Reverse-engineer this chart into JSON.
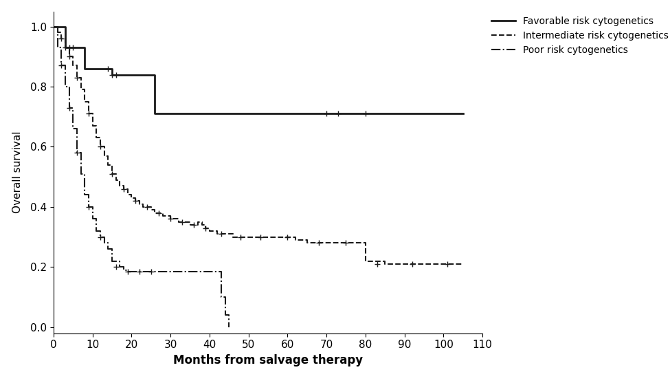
{
  "title": "",
  "xlabel": "Months from salvage therapy",
  "ylabel": "Overall survival",
  "xlim": [
    0,
    110
  ],
  "ylim": [
    -0.02,
    1.05
  ],
  "xticks": [
    0,
    10,
    20,
    30,
    40,
    50,
    60,
    70,
    80,
    90,
    100,
    110
  ],
  "yticks": [
    0.0,
    0.2,
    0.4,
    0.6,
    0.8,
    1.0
  ],
  "favorable": {
    "times": [
      0,
      2,
      3,
      5,
      8,
      14,
      15,
      26,
      35,
      105
    ],
    "surv": [
      1.0,
      1.0,
      0.93,
      0.93,
      0.86,
      0.86,
      0.84,
      0.71,
      0.71,
      0.71
    ],
    "censors_t": [
      3,
      4,
      5,
      14,
      15,
      16,
      70,
      73,
      80
    ],
    "censors_s": [
      0.93,
      0.93,
      0.93,
      0.86,
      0.84,
      0.84,
      0.71,
      0.71,
      0.71
    ],
    "linestyle": "solid",
    "color": "#1a1a1a",
    "linewidth": 2.0
  },
  "intermediate": {
    "times": [
      0,
      1,
      2,
      3,
      4,
      5,
      6,
      7,
      8,
      9,
      10,
      11,
      12,
      13,
      14,
      15,
      16,
      17,
      18,
      19,
      20,
      21,
      22,
      23,
      24,
      25,
      26,
      27,
      28,
      30,
      32,
      33,
      35,
      36,
      37,
      38,
      39,
      40,
      41,
      42,
      44,
      46,
      48,
      50,
      52,
      55,
      58,
      60,
      62,
      65,
      68,
      70,
      73,
      75,
      76,
      78,
      80,
      85,
      90,
      95,
      100,
      105
    ],
    "surv": [
      1.0,
      0.98,
      0.96,
      0.93,
      0.9,
      0.87,
      0.83,
      0.79,
      0.75,
      0.71,
      0.67,
      0.63,
      0.6,
      0.57,
      0.54,
      0.51,
      0.49,
      0.47,
      0.46,
      0.44,
      0.43,
      0.42,
      0.41,
      0.4,
      0.4,
      0.39,
      0.38,
      0.38,
      0.37,
      0.36,
      0.35,
      0.35,
      0.34,
      0.34,
      0.35,
      0.34,
      0.33,
      0.32,
      0.32,
      0.31,
      0.31,
      0.3,
      0.3,
      0.3,
      0.3,
      0.3,
      0.3,
      0.3,
      0.29,
      0.28,
      0.28,
      0.28,
      0.28,
      0.28,
      0.28,
      0.28,
      0.22,
      0.21,
      0.21,
      0.21,
      0.21,
      0.21
    ],
    "censors_t": [
      2,
      4,
      6,
      9,
      12,
      15,
      18,
      21,
      24,
      27,
      30,
      33,
      36,
      39,
      43,
      48,
      53,
      60,
      68,
      75,
      83,
      92,
      101
    ],
    "censors_s": [
      0.96,
      0.9,
      0.83,
      0.71,
      0.6,
      0.51,
      0.46,
      0.42,
      0.4,
      0.38,
      0.36,
      0.35,
      0.34,
      0.33,
      0.31,
      0.3,
      0.3,
      0.3,
      0.28,
      0.28,
      0.21,
      0.21,
      0.21
    ],
    "linestyle": "dashed",
    "color": "#1a1a1a",
    "linewidth": 1.5
  },
  "poor": {
    "times": [
      0,
      1,
      2,
      3,
      4,
      5,
      6,
      7,
      8,
      9,
      10,
      11,
      12,
      13,
      14,
      15,
      17,
      18,
      19,
      20,
      22,
      25,
      26,
      40,
      42,
      43,
      44,
      45
    ],
    "surv": [
      1.0,
      0.93,
      0.87,
      0.8,
      0.73,
      0.66,
      0.58,
      0.51,
      0.44,
      0.4,
      0.36,
      0.32,
      0.3,
      0.28,
      0.26,
      0.22,
      0.2,
      0.19,
      0.185,
      0.185,
      0.185,
      0.185,
      0.185,
      0.185,
      0.185,
      0.1,
      0.04,
      0.0
    ],
    "censors_t": [
      2,
      4,
      6,
      9,
      12,
      16,
      19,
      22,
      25
    ],
    "censors_s": [
      0.87,
      0.73,
      0.58,
      0.4,
      0.3,
      0.2,
      0.185,
      0.185,
      0.185
    ],
    "linestyle": "dashdot",
    "color": "#1a1a1a",
    "linewidth": 1.5
  },
  "legend_labels": [
    "Favorable risk cytogenetics",
    "Intermediate risk cytogenetics",
    "Poor risk cytogenetics"
  ],
  "background_color": "#ffffff",
  "font_size": 11
}
